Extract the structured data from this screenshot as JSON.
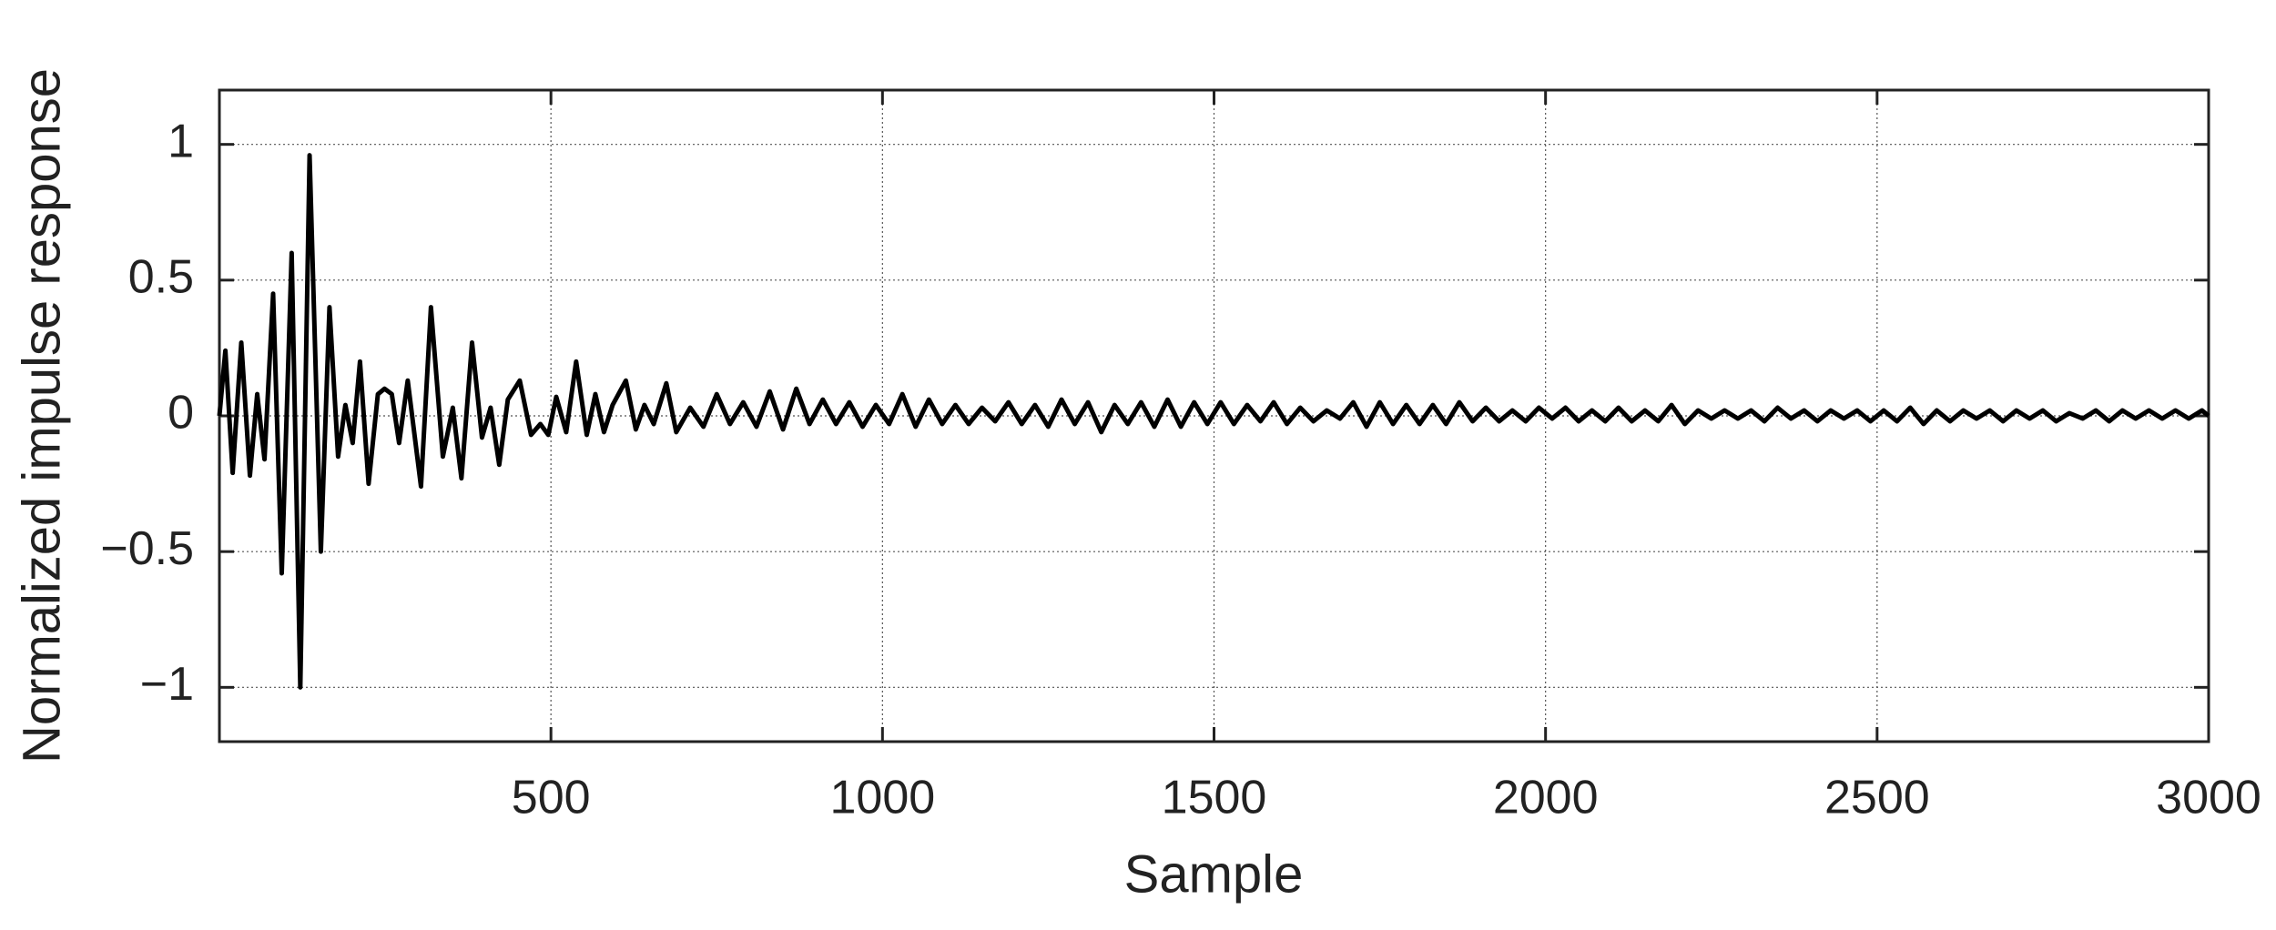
{
  "chart_data": {
    "type": "line",
    "xlabel": "Sample",
    "ylabel": "Normalized impulse response",
    "x": [
      0,
      9,
      20,
      33,
      46,
      57,
      68,
      81,
      94,
      109,
      122,
      136,
      153,
      166,
      179,
      190,
      201,
      212,
      225,
      239,
      249,
      260,
      271,
      284,
      304,
      319,
      337,
      352,
      365,
      381,
      396,
      409,
      422,
      435,
      453,
      470,
      484,
      496,
      508,
      523,
      538,
      554,
      567,
      580,
      593,
      613,
      628,
      641,
      655,
      674,
      689,
      710,
      730,
      750,
      770,
      790,
      810,
      830,
      850,
      870,
      890,
      910,
      930,
      950,
      970,
      990,
      1010,
      1030,
      1050,
      1070,
      1090,
      1110,
      1130,
      1150,
      1170,
      1190,
      1210,
      1230,
      1250,
      1270,
      1290,
      1310,
      1330,
      1350,
      1370,
      1390,
      1410,
      1430,
      1450,
      1470,
      1490,
      1510,
      1530,
      1550,
      1570,
      1590,
      1610,
      1630,
      1650,
      1670,
      1690,
      1710,
      1730,
      1750,
      1770,
      1790,
      1810,
      1830,
      1850,
      1870,
      1890,
      1910,
      1930,
      1950,
      1970,
      1990,
      2010,
      2030,
      2050,
      2070,
      2090,
      2110,
      2130,
      2150,
      2170,
      2190,
      2210,
      2230,
      2250,
      2270,
      2290,
      2310,
      2330,
      2350,
      2370,
      2390,
      2410,
      2430,
      2450,
      2470,
      2490,
      2510,
      2530,
      2550,
      2570,
      2590,
      2610,
      2630,
      2650,
      2670,
      2690,
      2710,
      2730,
      2750,
      2770,
      2790,
      2810,
      2830,
      2850,
      2870,
      2890,
      2910,
      2930,
      2950,
      2970,
      2990,
      3000
    ],
    "series": [
      {
        "color": "#000000",
        "values": [
          0,
          0.24,
          -0.21,
          0.27,
          -0.22,
          0.08,
          -0.16,
          0.45,
          -0.58,
          0.6,
          -1.0,
          0.96,
          -0.5,
          0.4,
          -0.15,
          0.04,
          -0.1,
          0.2,
          -0.25,
          0.08,
          0.1,
          0.08,
          -0.1,
          0.13,
          -0.26,
          0.4,
          -0.15,
          0.03,
          -0.23,
          0.27,
          -0.08,
          0.03,
          -0.18,
          0.06,
          0.13,
          -0.07,
          -0.03,
          -0.07,
          0.07,
          -0.06,
          0.2,
          -0.07,
          0.08,
          -0.06,
          0.04,
          0.13,
          -0.05,
          0.04,
          -0.03,
          0.12,
          -0.06,
          0.03,
          -0.04,
          0.08,
          -0.03,
          0.05,
          -0.04,
          0.09,
          -0.05,
          0.1,
          -0.03,
          0.06,
          -0.03,
          0.05,
          -0.04,
          0.04,
          -0.03,
          0.08,
          -0.04,
          0.06,
          -0.03,
          0.04,
          -0.03,
          0.03,
          -0.02,
          0.05,
          -0.03,
          0.04,
          -0.04,
          0.06,
          -0.03,
          0.05,
          -0.06,
          0.04,
          -0.03,
          0.05,
          -0.04,
          0.06,
          -0.04,
          0.05,
          -0.03,
          0.05,
          -0.03,
          0.04,
          -0.02,
          0.05,
          -0.03,
          0.03,
          -0.02,
          0.02,
          -0.01,
          0.05,
          -0.04,
          0.05,
          -0.03,
          0.04,
          -0.03,
          0.04,
          -0.03,
          0.05,
          -0.02,
          0.03,
          -0.02,
          0.02,
          -0.02,
          0.03,
          -0.01,
          0.03,
          -0.02,
          0.02,
          -0.02,
          0.03,
          -0.02,
          0.02,
          -0.02,
          0.04,
          -0.03,
          0.02,
          -0.01,
          0.02,
          -0.01,
          0.02,
          -0.02,
          0.03,
          -0.01,
          0.02,
          -0.02,
          0.02,
          -0.01,
          0.02,
          -0.02,
          0.02,
          -0.02,
          0.03,
          -0.03,
          0.02,
          -0.02,
          0.02,
          -0.01,
          0.02,
          -0.02,
          0.02,
          -0.01,
          0.02,
          -0.02,
          0.01,
          -0.01,
          0.02,
          -0.02,
          0.02,
          -0.01,
          0.02,
          -0.01,
          0.02,
          -0.01,
          0.02,
          0
        ]
      }
    ],
    "xlim": [
      0,
      3000
    ],
    "xticks": [
      500,
      1000,
      1500,
      2000,
      2500,
      3000
    ],
    "ylim": [
      -1.2,
      1.2
    ],
    "yticks": [
      {
        "value": -1,
        "label": "−1"
      },
      {
        "value": -0.5,
        "label": "−0.5"
      },
      0,
      0.5,
      1
    ],
    "grid": true
  }
}
